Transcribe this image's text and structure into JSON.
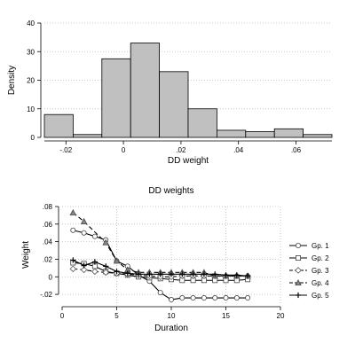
{
  "chart_data": [
    {
      "type": "bar",
      "xlabel": "DD weight",
      "ylabel": "Density",
      "bin_edges": [
        -0.0275,
        -0.0175,
        -0.0075,
        0.0025,
        0.0125,
        0.0225,
        0.0325,
        0.0425,
        0.0525,
        0.0625,
        0.0725
      ],
      "values": [
        8,
        1,
        27.5,
        33,
        23,
        10,
        2.5,
        2,
        3,
        1,
        1
      ],
      "xticks": [
        -0.02,
        0,
        0.02,
        0.04,
        0.06
      ],
      "xtick_labels": [
        "-.02",
        "0",
        ".02",
        ".04",
        ".06"
      ],
      "yticks": [
        0,
        10,
        20,
        30,
        40
      ],
      "ytick_labels": [
        "0",
        "10",
        "20",
        "30",
        "40"
      ],
      "xlim": [
        -0.0275,
        0.0725
      ],
      "ylim": [
        0,
        40
      ],
      "grid": "horizontal dotted",
      "bar_color": "#c0c0c0",
      "bar_stroke": "#000000"
    },
    {
      "type": "line",
      "title": "DD weights",
      "xlabel": "Duration",
      "ylabel": "Weight",
      "xlim": [
        0,
        20
      ],
      "ylim": [
        -0.03,
        0.08
      ],
      "xticks": [
        0,
        5,
        10,
        15,
        20
      ],
      "xtick_labels": [
        "0",
        "5",
        "10",
        "15",
        "20"
      ],
      "yticks": [
        -0.02,
        0,
        0.02,
        0.04,
        0.06,
        0.08
      ],
      "ytick_labels": [
        "-.02",
        "0",
        ".02",
        ".04",
        ".06",
        ".08"
      ],
      "grid": "dotted both",
      "legend_position": "right",
      "series": [
        {
          "name": "Gp. 1",
          "marker": "circle",
          "dash": "solid",
          "points": [
            [
              1,
              0.053
            ],
            [
              2,
              0.05
            ],
            [
              3,
              0.046
            ],
            [
              4,
              0.042
            ],
            [
              5,
              0.018
            ],
            [
              6,
              0.012
            ],
            [
              7,
              0.002
            ],
            [
              8,
              -0.005
            ],
            [
              9,
              -0.018
            ],
            [
              10,
              -0.026
            ],
            [
              11,
              -0.024
            ],
            [
              12,
              -0.024
            ],
            [
              13,
              -0.024
            ],
            [
              14,
              -0.024
            ],
            [
              15,
              -0.024
            ],
            [
              16,
              -0.024
            ],
            [
              17,
              -0.024
            ]
          ]
        },
        {
          "name": "Gp. 2",
          "marker": "square",
          "dash": "solid",
          "points": [
            [
              1,
              0.016
            ],
            [
              2,
              0.015
            ],
            [
              3,
              0.012
            ],
            [
              4,
              0.006
            ],
            [
              5,
              0.004
            ],
            [
              6,
              0.002
            ],
            [
              7,
              0
            ],
            [
              8,
              -0.001
            ],
            [
              9,
              -0.002
            ],
            [
              10,
              -0.003
            ],
            [
              11,
              -0.004
            ],
            [
              12,
              -0.004
            ],
            [
              13,
              -0.004
            ],
            [
              14,
              -0.004
            ],
            [
              15,
              -0.004
            ],
            [
              16,
              -0.004
            ],
            [
              17,
              -0.003
            ]
          ]
        },
        {
          "name": "Gp. 3",
          "marker": "diamond",
          "dash": "dashed",
          "points": [
            [
              1,
              0.009
            ],
            [
              2,
              0.008
            ],
            [
              3,
              0.006
            ],
            [
              4,
              0.005
            ],
            [
              5,
              0.004
            ],
            [
              6,
              0.003
            ],
            [
              7,
              0.002
            ],
            [
              8,
              0.001
            ],
            [
              9,
              0
            ],
            [
              10,
              0
            ],
            [
              11,
              0.001
            ],
            [
              12,
              0.001
            ],
            [
              13,
              0.001
            ],
            [
              14,
              0.001
            ],
            [
              15,
              0.001
            ],
            [
              16,
              0.001
            ],
            [
              17,
              0.001
            ]
          ]
        },
        {
          "name": "Gp. 4",
          "marker": "triangle",
          "dash": "dashed",
          "points": [
            [
              1,
              0.073
            ],
            [
              2,
              0.063
            ],
            [
              4,
              0.039
            ],
            [
              5,
              0.018
            ],
            [
              6,
              0.008
            ],
            [
              7,
              0.005
            ],
            [
              8,
              0.005
            ],
            [
              9,
              0.005
            ],
            [
              10,
              0.005
            ],
            [
              11,
              0.005
            ],
            [
              12,
              0.005
            ],
            [
              13,
              0.005
            ],
            [
              14,
              0.001
            ],
            [
              15,
              0.001
            ],
            [
              16,
              0.001
            ],
            [
              17,
              0.001
            ]
          ]
        },
        {
          "name": "Gp. 5",
          "marker": "plus",
          "dash": "solid",
          "points": [
            [
              1,
              0.019
            ],
            [
              2,
              0.013
            ],
            [
              3,
              0.017
            ],
            [
              4,
              0.012
            ],
            [
              5,
              0.006
            ],
            [
              6,
              0.004
            ],
            [
              7,
              0.003
            ],
            [
              8,
              0.003
            ],
            [
              9,
              0.003
            ],
            [
              10,
              0.003
            ],
            [
              11,
              0.003
            ],
            [
              12,
              0.003
            ],
            [
              13,
              0.003
            ],
            [
              14,
              0.003
            ],
            [
              15,
              0.002
            ],
            [
              16,
              0.002
            ],
            [
              17,
              0.001
            ]
          ]
        }
      ]
    }
  ]
}
